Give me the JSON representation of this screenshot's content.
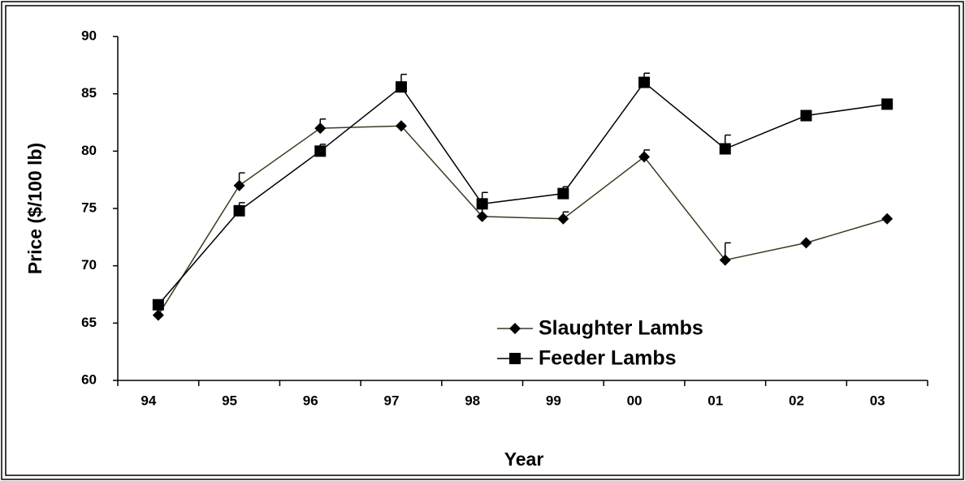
{
  "chart_data": {
    "type": "line",
    "x_label": "Year",
    "y_label": "Price ($/100 lb)",
    "categories": [
      "94",
      "95",
      "96",
      "97",
      "98",
      "99",
      "00",
      "01",
      "02",
      "03"
    ],
    "ylim": [
      60,
      90
    ],
    "yticks": [
      60,
      65,
      70,
      75,
      80,
      85,
      90
    ],
    "legend": "bottom-center",
    "series": [
      {
        "name": "Slaughter Lambs",
        "color": "#3b3b1f",
        "marker": "diamond",
        "values": [
          65.7,
          77.0,
          82.0,
          82.2,
          74.3,
          74.1,
          79.5,
          70.5,
          72.0,
          74.1
        ],
        "errors": [
          null,
          1.1,
          0.8,
          null,
          1.0,
          0.6,
          0.6,
          1.5,
          null,
          null
        ]
      },
      {
        "name": "Feeder Lambs",
        "color": "#000000",
        "marker": "square",
        "values": [
          66.6,
          74.8,
          80.0,
          85.6,
          75.4,
          76.3,
          86.0,
          80.2,
          83.1,
          84.1
        ],
        "errors": [
          null,
          0.7,
          0.6,
          1.1,
          1.0,
          0.6,
          0.8,
          1.2,
          null,
          null
        ]
      }
    ]
  }
}
